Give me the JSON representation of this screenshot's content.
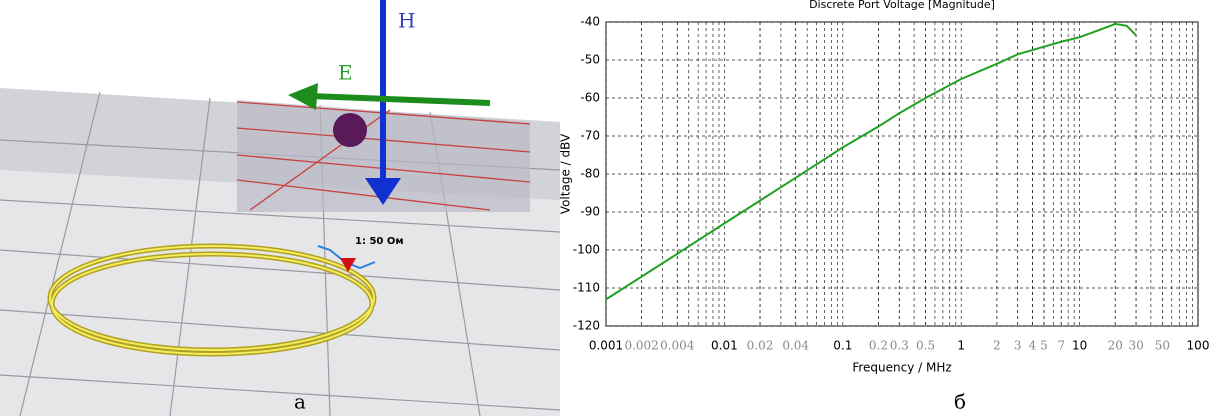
{
  "panel_a": {
    "labels": [
      "H",
      "E",
      "1: 50 Ом"
    ],
    "caption": "а"
  },
  "panel_b": {
    "caption": "б"
  },
  "chart_data": {
    "type": "line",
    "title": "Discrete Port Voltage [Magnitude]",
    "x_label": "Frequency / MHz",
    "y_label": "Voltage / dBV",
    "x": [
      0.001,
      0.002,
      0.004,
      0.01,
      0.02,
      0.04,
      0.1,
      0.2,
      0.3,
      0.5,
      1,
      2,
      3,
      5,
      7,
      10,
      15,
      20,
      25,
      30
    ],
    "values": [
      -113,
      -107,
      -101,
      -93,
      -87,
      -81,
      -73,
      -67.5,
      -64,
      -60,
      -55,
      -51,
      -48.5,
      -46.5,
      -45.2,
      -44,
      -42,
      -40.5,
      -41,
      -43.5
    ],
    "color": "#22a022",
    "log_x": true,
    "grid": true,
    "xlim": [
      0.001,
      100
    ],
    "ylim": [
      -120,
      -40
    ],
    "xticks": [
      0.001,
      0.002,
      0.004,
      0.01,
      0.02,
      0.04,
      0.1,
      0.2,
      0.3,
      0.5,
      1,
      2,
      3,
      4,
      5,
      7,
      10,
      20,
      30,
      50,
      100
    ],
    "yticks": [
      -120,
      -110,
      -100,
      -90,
      -80,
      -70,
      -60,
      -50,
      -40
    ]
  }
}
